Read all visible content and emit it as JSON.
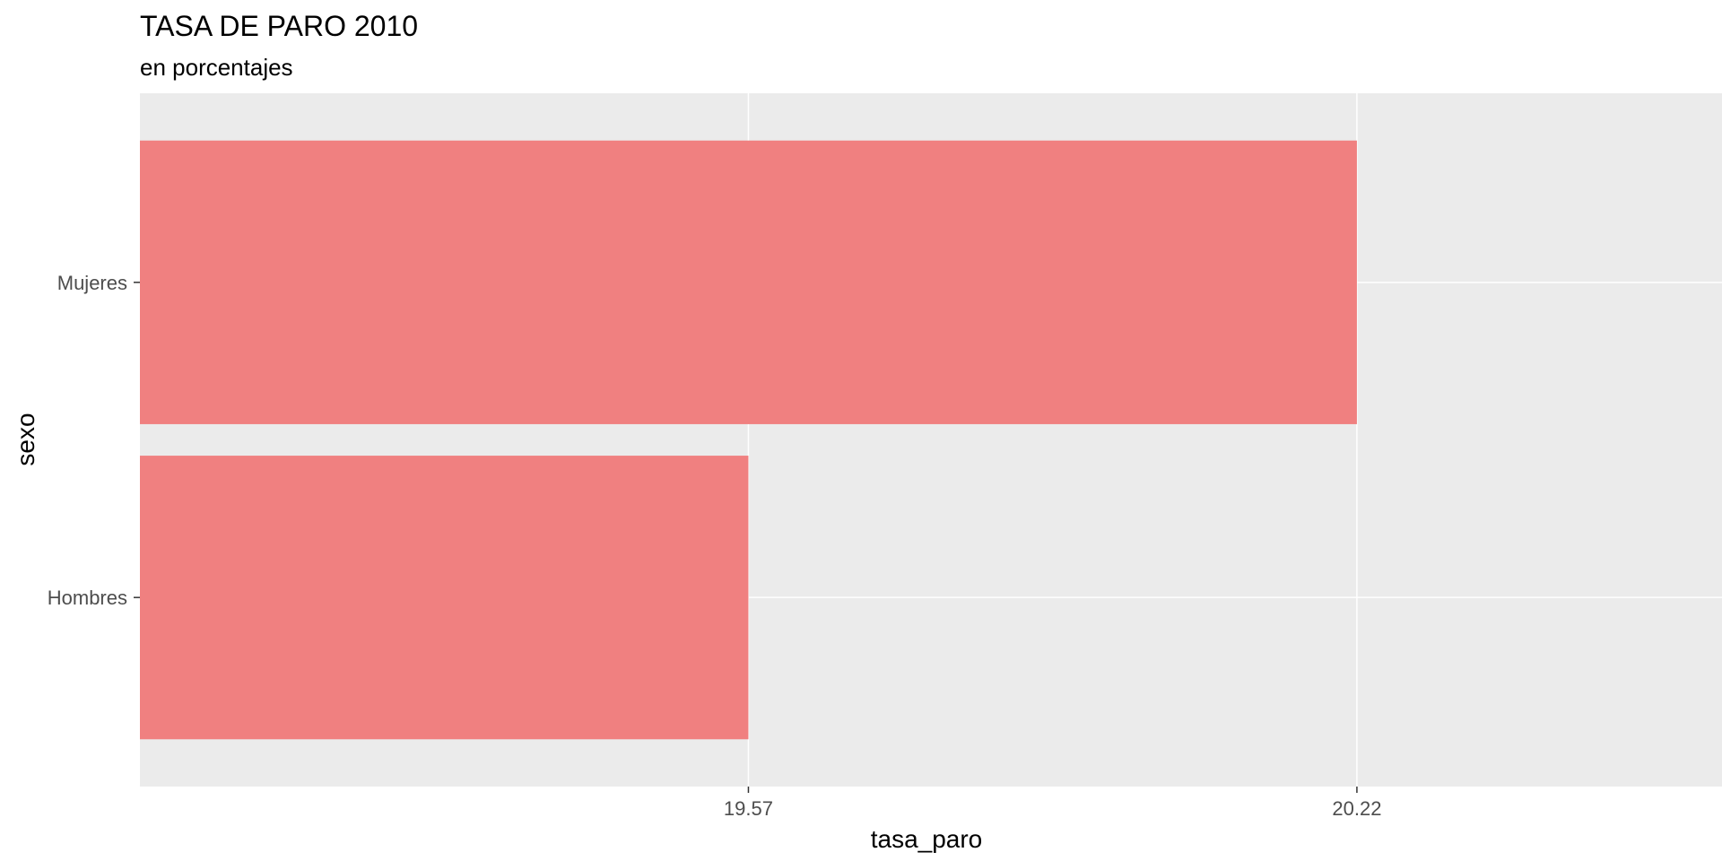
{
  "chart_data": {
    "type": "bar",
    "orientation": "horizontal",
    "title": "TASA DE PARO 2010",
    "subtitle": "en porcentajes",
    "xlabel": "tasa_paro",
    "ylabel": "sexo",
    "categories": [
      "Hombres",
      "Mujeres"
    ],
    "series": [
      {
        "values": [
          19.57,
          20.22
        ]
      }
    ],
    "x_ticks": [
      "19.57",
      "20.22"
    ],
    "grid": true,
    "legend": "none",
    "colors": {
      "bar": "#F08080",
      "panel": "#EBEBEB",
      "grid": "#FFFFFF",
      "tick": "#333333"
    }
  }
}
